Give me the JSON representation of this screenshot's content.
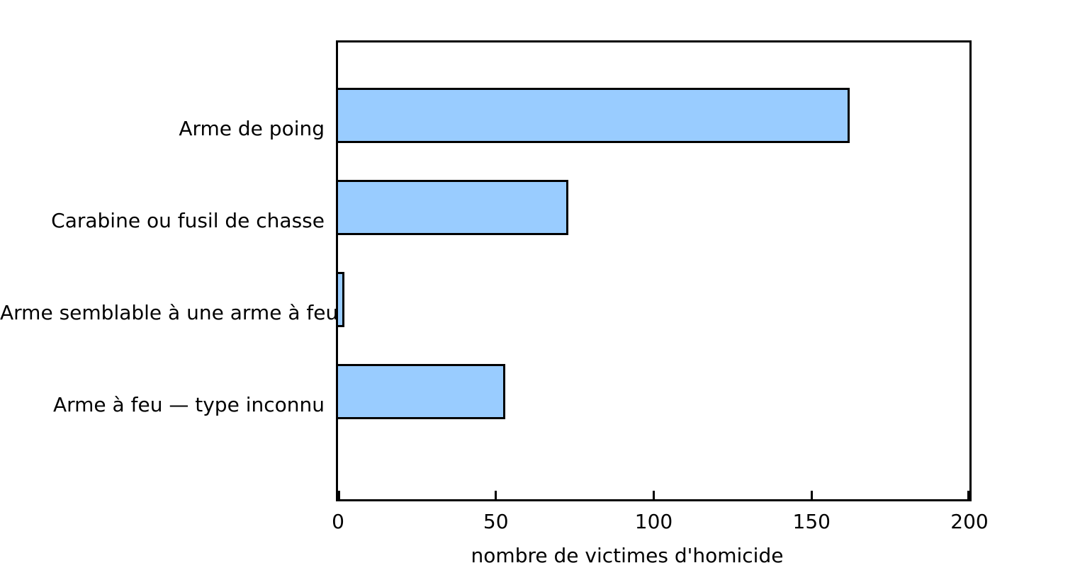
{
  "chart_data": {
    "type": "bar",
    "orientation": "horizontal",
    "title": "",
    "xlabel": "nombre de victimes d'homicide",
    "ylabel": "",
    "categories": [
      "Arme de poing",
      "Carabine ou fusil de chasse",
      "Arme semblable à une arme à feu",
      "Arme à feu — type inconnu"
    ],
    "values": [
      162,
      73,
      2,
      53
    ],
    "xlim": [
      0,
      200
    ],
    "xticks": [
      0,
      50,
      100,
      150,
      200
    ],
    "grid": false,
    "legend": false,
    "bar_fill_color": "#99CCFF",
    "bar_border_color": "#000000",
    "axis_color": "#000000",
    "text_color": "#000000",
    "background_color": "#FFFFFF"
  }
}
